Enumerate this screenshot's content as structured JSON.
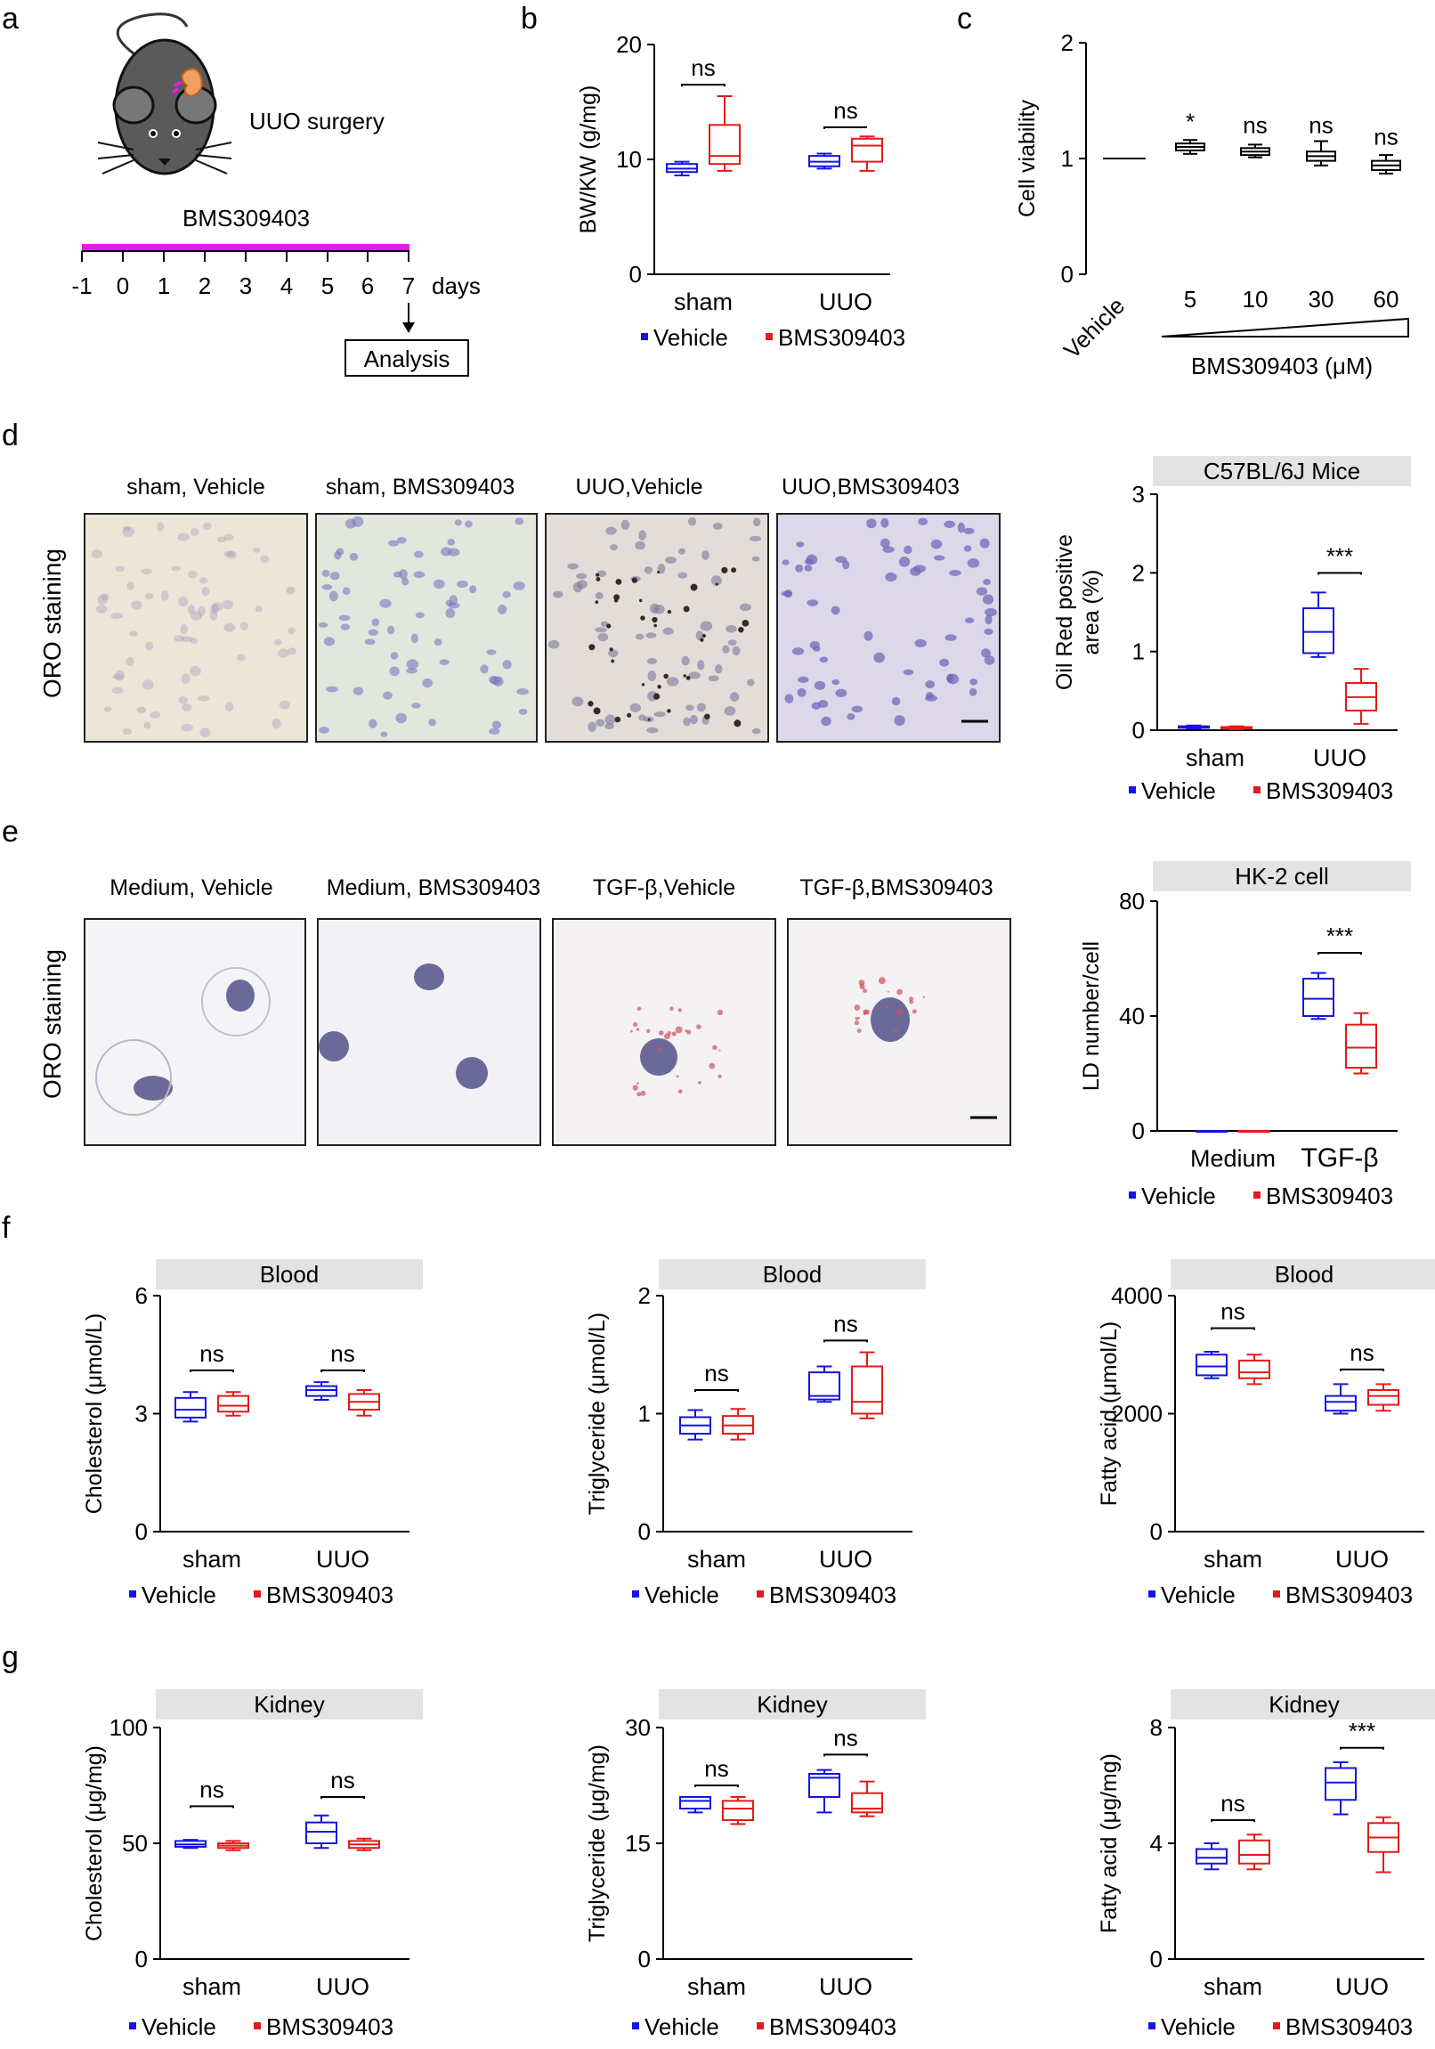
{
  "colors": {
    "vehicle": "#1414e6",
    "bms": "#e61919",
    "black": "#000000",
    "magenta": "#e619e6",
    "panel_header": "#e3e3e3"
  },
  "labels": {
    "a": "a",
    "b": "b",
    "c": "c",
    "d": "d",
    "e": "e",
    "f": "f",
    "g": "g",
    "surgery": "UUO surgery",
    "drug": "BMS309403",
    "days": [
      "-1",
      "0",
      "1",
      "2",
      "3",
      "4",
      "5",
      "6",
      "7"
    ],
    "days_word": "days",
    "analysis": "Analysis",
    "oro": "ORO staining",
    "d_images": [
      "sham, Vehicle",
      "sham, BMS309403",
      "UUO,Vehicle",
      "UUO,BMS309403"
    ],
    "e_images": [
      "Medium, Vehicle",
      "Medium, BMS309403",
      "TGF-β,Vehicle",
      "TGF-β,BMS309403"
    ],
    "icons": {
      "mouse": "mouse-icon",
      "kidney": "kidney-icon"
    }
  },
  "chart_data": [
    {
      "id": "b",
      "type": "box",
      "title": "",
      "ylabel": "BW/KW (g/mg)",
      "ylim": [
        0,
        20
      ],
      "yticks": [
        "0",
        "10",
        "20"
      ],
      "categories": [
        "sham",
        "UUO"
      ],
      "legend": [
        "Vehicle",
        "BMS309403"
      ],
      "series": [
        {
          "name": "Vehicle",
          "boxes": [
            {
              "min": 8.6,
              "q1": 8.9,
              "median": 9.2,
              "q3": 9.6,
              "max": 9.8
            },
            {
              "min": 9.2,
              "q1": 9.4,
              "median": 9.8,
              "q3": 10.3,
              "max": 10.5
            }
          ]
        },
        {
          "name": "BMS309403",
          "boxes": [
            {
              "min": 9.0,
              "q1": 9.6,
              "median": 10.3,
              "q3": 13.0,
              "max": 15.5
            },
            {
              "min": 9.0,
              "q1": 9.8,
              "median": 11.2,
              "q3": 11.8,
              "max": 12.0
            }
          ]
        }
      ],
      "annotations": [
        {
          "text": "ns",
          "between": [
            0,
            1
          ],
          "cat": 0,
          "y": 16.5
        },
        {
          "text": "ns",
          "between": [
            0,
            1
          ],
          "cat": 1,
          "y": 12.8
        }
      ]
    },
    {
      "id": "c",
      "type": "box",
      "title": "",
      "ylabel": "Cell viability",
      "ylim": [
        0,
        2
      ],
      "yticks": [
        "0",
        "1",
        "2"
      ],
      "categories": [
        "Vehicle",
        "5",
        "10",
        "30",
        "60"
      ],
      "xlabel": "BMS309403 (μM)",
      "series": [
        {
          "name": "viability",
          "boxes": [
            {
              "min": 1.0,
              "q1": 1.0,
              "median": 1.0,
              "q3": 1.0,
              "max": 1.0
            },
            {
              "min": 1.04,
              "q1": 1.07,
              "median": 1.1,
              "q3": 1.13,
              "max": 1.16
            },
            {
              "min": 1.01,
              "q1": 1.03,
              "median": 1.06,
              "q3": 1.09,
              "max": 1.12
            },
            {
              "min": 0.94,
              "q1": 0.98,
              "median": 1.02,
              "q3": 1.06,
              "max": 1.15
            },
            {
              "min": 0.87,
              "q1": 0.9,
              "median": 0.94,
              "q3": 0.98,
              "max": 1.03
            }
          ]
        }
      ],
      "annotations": [
        {
          "text": "*",
          "cat": 1,
          "y": 1.25
        },
        {
          "text": "ns",
          "cat": 2,
          "y": 1.22
        },
        {
          "text": "ns",
          "cat": 3,
          "y": 1.22
        },
        {
          "text": "ns",
          "cat": 4,
          "y": 1.12
        }
      ]
    },
    {
      "id": "d",
      "type": "box",
      "title": "C57BL/6J Mice",
      "ylabel": "Oil Red positive area (%)",
      "ylabel_lines": [
        "Oil Red positive",
        "area (%)"
      ],
      "ylim": [
        0,
        3
      ],
      "yticks": [
        "0",
        "1",
        "2",
        "3"
      ],
      "categories": [
        "sham",
        "UUO"
      ],
      "legend": [
        "Vehicle",
        "BMS309403"
      ],
      "series": [
        {
          "name": "Vehicle",
          "boxes": [
            {
              "min": 0.02,
              "q1": 0.03,
              "median": 0.04,
              "q3": 0.05,
              "max": 0.06
            },
            {
              "min": 0.93,
              "q1": 0.98,
              "median": 1.25,
              "q3": 1.55,
              "max": 1.75
            }
          ]
        },
        {
          "name": "BMS309403",
          "boxes": [
            {
              "min": 0.01,
              "q1": 0.02,
              "median": 0.03,
              "q3": 0.04,
              "max": 0.05
            },
            {
              "min": 0.08,
              "q1": 0.25,
              "median": 0.42,
              "q3": 0.6,
              "max": 0.78
            }
          ]
        }
      ],
      "annotations": [
        {
          "text": "***",
          "cat": 1,
          "y": 2.0
        }
      ]
    },
    {
      "id": "e",
      "type": "box",
      "title": "HK-2 cell",
      "ylabel": "LD number/cell",
      "ylim": [
        0,
        80
      ],
      "yticks": [
        "0",
        "40",
        "80"
      ],
      "categories": [
        "Medium",
        "TGF-β"
      ],
      "legend": [
        "Vehicle",
        "BMS309403"
      ],
      "series": [
        {
          "name": "Vehicle",
          "boxes": [
            {
              "min": 0,
              "q1": 0,
              "median": 0,
              "q3": 0,
              "max": 0
            },
            {
              "min": 39,
              "q1": 40,
              "median": 46,
              "q3": 53,
              "max": 55
            }
          ]
        },
        {
          "name": "BMS309403",
          "boxes": [
            {
              "min": 0,
              "q1": 0,
              "median": 0,
              "q3": 0,
              "max": 0
            },
            {
              "min": 20,
              "q1": 22,
              "median": 29,
              "q3": 37,
              "max": 41
            }
          ]
        }
      ],
      "annotations": [
        {
          "text": "***",
          "cat": 1,
          "y": 62
        }
      ]
    },
    {
      "id": "f1",
      "type": "box",
      "title": "Blood",
      "ylabel": "Cholesterol (μmol/L)",
      "ylim": [
        0,
        6
      ],
      "yticks": [
        "0",
        "3",
        "6"
      ],
      "categories": [
        "sham",
        "UUO"
      ],
      "legend": [
        "Vehicle",
        "BMS309403"
      ],
      "series": [
        {
          "name": "Vehicle",
          "boxes": [
            {
              "min": 2.8,
              "q1": 2.9,
              "median": 3.1,
              "q3": 3.4,
              "max": 3.55
            },
            {
              "min": 3.35,
              "q1": 3.45,
              "median": 3.6,
              "q3": 3.7,
              "max": 3.8
            }
          ]
        },
        {
          "name": "BMS309403",
          "boxes": [
            {
              "min": 2.95,
              "q1": 3.05,
              "median": 3.2,
              "q3": 3.45,
              "max": 3.55
            },
            {
              "min": 2.95,
              "q1": 3.1,
              "median": 3.3,
              "q3": 3.5,
              "max": 3.6
            }
          ]
        }
      ],
      "annotations": [
        {
          "text": "ns",
          "cat": 0,
          "y": 4.1
        },
        {
          "text": "ns",
          "cat": 1,
          "y": 4.1
        }
      ]
    },
    {
      "id": "f2",
      "type": "box",
      "title": "Blood",
      "ylabel": "Triglyceride (μmol/L)",
      "ylim": [
        0,
        2
      ],
      "yticks": [
        "0",
        "1",
        "2"
      ],
      "categories": [
        "sham",
        "UUO"
      ],
      "legend": [
        "Vehicle",
        "BMS309403"
      ],
      "series": [
        {
          "name": "Vehicle",
          "boxes": [
            {
              "min": 0.78,
              "q1": 0.83,
              "median": 0.9,
              "q3": 0.97,
              "max": 1.03
            },
            {
              "min": 1.1,
              "q1": 1.12,
              "median": 1.15,
              "q3": 1.35,
              "max": 1.4
            }
          ]
        },
        {
          "name": "BMS309403",
          "boxes": [
            {
              "min": 0.78,
              "q1": 0.83,
              "median": 0.9,
              "q3": 0.98,
              "max": 1.04
            },
            {
              "min": 0.96,
              "q1": 1.0,
              "median": 1.1,
              "q3": 1.4,
              "max": 1.52
            }
          ]
        }
      ],
      "annotations": [
        {
          "text": "ns",
          "cat": 0,
          "y": 1.2
        },
        {
          "text": "ns",
          "cat": 1,
          "y": 1.62
        }
      ]
    },
    {
      "id": "f3",
      "type": "box",
      "title": "Blood",
      "ylabel": "Fatty acid (μmol/L)",
      "ylim": [
        0,
        4000
      ],
      "yticks": [
        "0",
        "2000",
        "4000"
      ],
      "categories": [
        "sham",
        "UUO"
      ],
      "legend": [
        "Vehicle",
        "BMS309403"
      ],
      "series": [
        {
          "name": "Vehicle",
          "boxes": [
            {
              "min": 2600,
              "q1": 2650,
              "median": 2800,
              "q3": 3000,
              "max": 3050
            },
            {
              "min": 2000,
              "q1": 2050,
              "median": 2200,
              "q3": 2300,
              "max": 2500
            }
          ]
        },
        {
          "name": "BMS309403",
          "boxes": [
            {
              "min": 2500,
              "q1": 2600,
              "median": 2700,
              "q3": 2900,
              "max": 3000
            },
            {
              "min": 2050,
              "q1": 2150,
              "median": 2300,
              "q3": 2400,
              "max": 2500
            }
          ]
        }
      ],
      "annotations": [
        {
          "text": "ns",
          "cat": 0,
          "y": 3450
        },
        {
          "text": "ns",
          "cat": 1,
          "y": 2750
        }
      ]
    },
    {
      "id": "g1",
      "type": "box",
      "title": "Kidney",
      "ylabel": "Cholesterol (μg/mg)",
      "ylim": [
        0,
        100
      ],
      "yticks": [
        "0",
        "50",
        "100"
      ],
      "categories": [
        "sham",
        "UUO"
      ],
      "legend": [
        "Vehicle",
        "BMS309403"
      ],
      "series": [
        {
          "name": "Vehicle",
          "boxes": [
            {
              "min": 48,
              "q1": 48.5,
              "median": 49.5,
              "q3": 51,
              "max": 51.5
            },
            {
              "min": 48,
              "q1": 50,
              "median": 55,
              "q3": 59,
              "max": 62
            }
          ]
        },
        {
          "name": "BMS309403",
          "boxes": [
            {
              "min": 47,
              "q1": 48,
              "median": 49,
              "q3": 50,
              "max": 51
            },
            {
              "min": 47,
              "q1": 48,
              "median": 49.5,
              "q3": 51,
              "max": 52
            }
          ]
        }
      ],
      "annotations": [
        {
          "text": "ns",
          "cat": 0,
          "y": 66
        },
        {
          "text": "ns",
          "cat": 1,
          "y": 70
        }
      ]
    },
    {
      "id": "g2",
      "type": "box",
      "title": "Kidney",
      "ylabel": "Triglyceride (μg/mg)",
      "ylim": [
        0,
        30
      ],
      "yticks": [
        "0",
        "15",
        "30"
      ],
      "categories": [
        "sham",
        "UUO"
      ],
      "legend": [
        "Vehicle",
        "BMS309403"
      ],
      "series": [
        {
          "name": "Vehicle",
          "boxes": [
            {
              "min": 19,
              "q1": 19.5,
              "median": 20.5,
              "q3": 21,
              "max": 21
            },
            {
              "min": 19,
              "q1": 21,
              "median": 23.5,
              "q3": 24,
              "max": 24.5
            }
          ]
        },
        {
          "name": "BMS309403",
          "boxes": [
            {
              "min": 17.5,
              "q1": 18,
              "median": 19.5,
              "q3": 20.5,
              "max": 21
            },
            {
              "min": 18.5,
              "q1": 19,
              "median": 19.5,
              "q3": 21.5,
              "max": 23
            }
          ]
        }
      ],
      "annotations": [
        {
          "text": "ns",
          "cat": 0,
          "y": 22.5
        },
        {
          "text": "ns",
          "cat": 1,
          "y": 26.5
        }
      ]
    },
    {
      "id": "g3",
      "type": "box",
      "title": "Kidney",
      "ylabel": "Fatty acid (μg/mg)",
      "ylim": [
        0,
        8
      ],
      "yticks": [
        "0",
        "4",
        "8"
      ],
      "categories": [
        "sham",
        "UUO"
      ],
      "legend": [
        "Vehicle",
        "BMS309403"
      ],
      "series": [
        {
          "name": "Vehicle",
          "boxes": [
            {
              "min": 3.1,
              "q1": 3.3,
              "median": 3.5,
              "q3": 3.8,
              "max": 4.0
            },
            {
              "min": 5.0,
              "q1": 5.5,
              "median": 6.1,
              "q3": 6.6,
              "max": 6.8
            }
          ]
        },
        {
          "name": "BMS309403",
          "boxes": [
            {
              "min": 3.1,
              "q1": 3.3,
              "median": 3.6,
              "q3": 4.1,
              "max": 4.3
            },
            {
              "min": 3.0,
              "q1": 3.7,
              "median": 4.2,
              "q3": 4.7,
              "max": 4.9
            }
          ]
        }
      ],
      "annotations": [
        {
          "text": "ns",
          "cat": 0,
          "y": 4.8
        },
        {
          "text": "***",
          "cat": 1,
          "y": 7.3
        }
      ]
    }
  ]
}
